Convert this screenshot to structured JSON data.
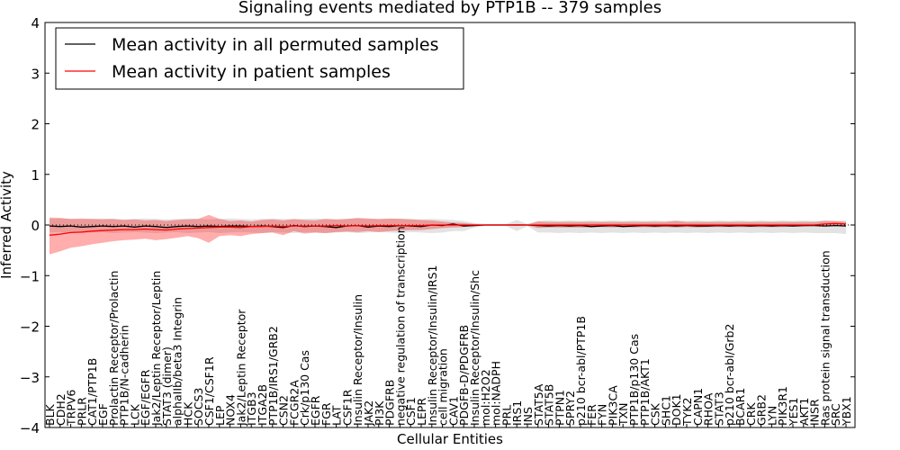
{
  "chart_data": {
    "type": "line",
    "title": "Signaling events mediated by PTP1B -- 379 samples",
    "xlabel": "Cellular Entities",
    "ylabel": "Inferred Activity",
    "ylim": [
      -4,
      4
    ],
    "yticks": [
      4,
      3,
      2,
      1,
      0,
      -1,
      -2,
      -3,
      -4
    ],
    "ytick_labels": [
      "4",
      "3",
      "2",
      "1",
      "0",
      "−1",
      "−2",
      "−3",
      "−4"
    ],
    "legend_position": "top-left",
    "categories": [
      "BLK",
      "CDH2",
      "TRPV6",
      "PRLR",
      "CAT1/PTP1B",
      "EGF",
      "Prolactin Receptor/Prolactin",
      "PTP1B/N-cadherin",
      "LCK",
      "EGF/EGFR",
      "Jak2/Leptin Receptor/Leptin",
      "STAT3 (dimer)",
      "alphaIIb/beta3 Integrin",
      "HCK",
      "SOCS3",
      "CSF1/CSF1R",
      "LEP",
      "NOX4",
      "Jak2/Leptin Receptor",
      "ITGB3",
      "ITGA2B",
      "PTP1B/IRS1/GRB2",
      "CSN2",
      "FCGR2A",
      "Crk/p130 Cas",
      "EGFR",
      "FGR",
      "LAT",
      "CSF1R",
      "Insulin Receptor/Insulin",
      "JAK2",
      "PI3K",
      "PDGFRB",
      "negative regulation of transcription",
      "CSF1",
      "LEPR",
      "Insulin Receptor/Insulin/IRS1",
      "cell migration",
      "CAV1",
      "PDGFB-D/PDGFRB",
      "Insulin Receptor/Insulin/Shc",
      "mol:H2O2",
      "mol:NADPH",
      "PRL",
      "IRS1",
      "INS",
      "STAT5A",
      "STAT5B",
      "PTPN1",
      "SPRY2",
      "p210 bcr-abl/PTP1B",
      "FER",
      "FYN",
      "PIK3CA",
      "TXN",
      "PTP1B/p130 Cas",
      "PTP1B/AKT1",
      "CSK",
      "SHC1",
      "DOK1",
      "TYK2",
      "CAPN1",
      "RHOA",
      "STAT3",
      "p210 bcr-abl/Grb2",
      "BCAR1",
      "CRK",
      "GRB2",
      "LYN",
      "PIK3R1",
      "YES1",
      "AKT1",
      "INSR",
      "Ras protein signal transduction",
      "SRC",
      "YBX1"
    ],
    "series": [
      {
        "name": "Mean activity in all permuted samples",
        "color": "#000000",
        "values": [
          -0.02,
          -0.03,
          -0.02,
          -0.04,
          -0.03,
          -0.02,
          -0.03,
          -0.02,
          -0.04,
          -0.02,
          -0.03,
          -0.05,
          -0.03,
          -0.02,
          -0.03,
          -0.02,
          -0.03,
          -0.02,
          -0.02,
          -0.03,
          -0.02,
          -0.03,
          -0.05,
          -0.01,
          -0.03,
          -0.02,
          -0.03,
          -0.05,
          -0.02,
          -0.01,
          -0.04,
          -0.02,
          -0.03,
          -0.01,
          -0.02,
          -0.03,
          0.0,
          -0.01,
          0.02,
          -0.02,
          -0.01,
          0.0,
          0.0,
          0.0,
          0.0,
          0.0,
          -0.01,
          -0.02,
          -0.01,
          -0.02,
          -0.01,
          -0.03,
          -0.02,
          -0.01,
          -0.03,
          -0.02,
          -0.01,
          -0.02,
          -0.01,
          -0.02,
          -0.01,
          -0.02,
          -0.02,
          -0.01,
          -0.02,
          -0.01,
          -0.02,
          -0.01,
          -0.02,
          -0.01,
          -0.02,
          -0.01,
          -0.01,
          -0.02,
          -0.01,
          -0.02
        ],
        "band_low": [
          -0.15,
          -0.14,
          -0.15,
          -0.16,
          -0.15,
          -0.14,
          -0.16,
          -0.15,
          -0.14,
          -0.15,
          -0.16,
          -0.15,
          -0.14,
          -0.16,
          -0.15,
          -0.14,
          -0.16,
          -0.15,
          -0.14,
          -0.15,
          -0.16,
          -0.14,
          -0.15,
          -0.16,
          -0.14,
          -0.15,
          -0.16,
          -0.15,
          -0.14,
          -0.16,
          -0.15,
          -0.14,
          -0.15,
          -0.16,
          -0.14,
          -0.15,
          -0.16,
          -0.15,
          -0.12,
          -0.12,
          -0.05,
          -0.02,
          -0.02,
          -0.02,
          -0.12,
          -0.02,
          -0.15,
          -0.15,
          -0.16,
          -0.15,
          -0.16,
          -0.15,
          -0.16,
          -0.15,
          -0.16,
          -0.15,
          -0.16,
          -0.15,
          -0.16,
          -0.15,
          -0.16,
          -0.15,
          -0.16,
          -0.15,
          -0.16,
          -0.15,
          -0.16,
          -0.15,
          -0.16,
          -0.15,
          -0.16,
          -0.15,
          -0.16,
          -0.16,
          -0.16,
          -0.18
        ],
        "band_high": [
          0.12,
          0.13,
          0.12,
          0.11,
          0.12,
          0.13,
          0.12,
          0.11,
          0.12,
          0.13,
          0.12,
          0.11,
          0.12,
          0.13,
          0.12,
          0.11,
          0.12,
          0.13,
          0.12,
          0.11,
          0.12,
          0.13,
          0.12,
          0.11,
          0.12,
          0.13,
          0.12,
          0.11,
          0.12,
          0.13,
          0.12,
          0.11,
          0.12,
          0.13,
          0.12,
          0.11,
          0.12,
          0.11,
          0.1,
          0.08,
          0.04,
          0.02,
          0.02,
          0.02,
          0.1,
          0.02,
          0.08,
          0.09,
          0.08,
          0.09,
          0.08,
          0.09,
          0.08,
          0.09,
          0.08,
          0.09,
          0.08,
          0.09,
          0.08,
          0.09,
          0.08,
          0.09,
          0.08,
          0.09,
          0.08,
          0.09,
          0.08,
          0.09,
          0.08,
          0.09,
          0.08,
          0.09,
          0.08,
          0.09,
          0.08,
          0.09
        ]
      },
      {
        "name": "Mean activity in patient samples",
        "color": "#ff0000",
        "values": [
          -0.2,
          -0.18,
          -0.15,
          -0.14,
          -0.12,
          -0.11,
          -0.1,
          -0.09,
          -0.09,
          -0.08,
          -0.09,
          -0.1,
          -0.08,
          -0.07,
          -0.06,
          -0.05,
          -0.04,
          -0.04,
          -0.05,
          -0.03,
          -0.03,
          -0.02,
          -0.03,
          -0.02,
          -0.02,
          -0.02,
          -0.02,
          -0.01,
          -0.02,
          -0.01,
          -0.02,
          -0.01,
          -0.01,
          -0.01,
          -0.01,
          -0.01,
          0.0,
          0.0,
          0.0,
          0.0,
          0.0,
          0.0,
          0.0,
          0.0,
          0.0,
          0.0,
          0.0,
          0.0,
          0.0,
          0.0,
          0.0,
          0.0,
          0.0,
          0.0,
          0.0,
          0.0,
          0.0,
          0.0,
          0.0,
          0.0,
          0.0,
          0.0,
          0.0,
          0.0,
          0.0,
          0.0,
          0.0,
          0.0,
          0.0,
          0.0,
          0.0,
          0.0,
          0.0,
          0.02,
          0.03,
          0.02
        ],
        "band_low": [
          -0.58,
          -0.52,
          -0.45,
          -0.42,
          -0.38,
          -0.35,
          -0.32,
          -0.3,
          -0.29,
          -0.27,
          -0.3,
          -0.28,
          -0.25,
          -0.22,
          -0.26,
          -0.35,
          -0.22,
          -0.2,
          -0.22,
          -0.18,
          -0.16,
          -0.15,
          -0.2,
          -0.12,
          -0.17,
          -0.15,
          -0.16,
          -0.14,
          -0.13,
          -0.14,
          -0.12,
          -0.14,
          -0.12,
          -0.11,
          -0.1,
          -0.1,
          -0.08,
          -0.06,
          -0.05,
          -0.04,
          -0.02,
          -0.01,
          -0.01,
          -0.01,
          -0.02,
          -0.01,
          -0.06,
          -0.05,
          -0.05,
          -0.05,
          -0.05,
          -0.05,
          -0.04,
          -0.05,
          -0.04,
          -0.05,
          -0.04,
          -0.05,
          -0.04,
          -0.05,
          -0.04,
          -0.05,
          -0.04,
          -0.04,
          -0.04,
          -0.04,
          -0.04,
          -0.04,
          -0.04,
          -0.04,
          -0.03,
          -0.03,
          -0.02,
          -0.01,
          -0.01,
          -0.02
        ],
        "band_high": [
          0.15,
          0.14,
          0.12,
          0.13,
          0.12,
          0.11,
          0.12,
          0.1,
          0.11,
          0.09,
          0.1,
          0.08,
          0.1,
          0.11,
          0.12,
          0.2,
          0.12,
          0.08,
          0.09,
          0.07,
          0.1,
          0.11,
          0.09,
          0.12,
          0.1,
          0.09,
          0.12,
          0.11,
          0.12,
          0.14,
          0.13,
          0.12,
          0.13,
          0.12,
          0.11,
          0.1,
          0.09,
          0.07,
          0.05,
          0.04,
          0.02,
          0.01,
          0.01,
          0.01,
          0.02,
          0.01,
          0.07,
          0.06,
          0.06,
          0.06,
          0.06,
          0.06,
          0.06,
          0.06,
          0.06,
          0.06,
          0.06,
          0.06,
          0.06,
          0.08,
          0.06,
          0.06,
          0.06,
          0.06,
          0.06,
          0.06,
          0.06,
          0.06,
          0.06,
          0.06,
          0.06,
          0.06,
          0.06,
          0.08,
          0.08,
          0.06
        ]
      }
    ]
  }
}
